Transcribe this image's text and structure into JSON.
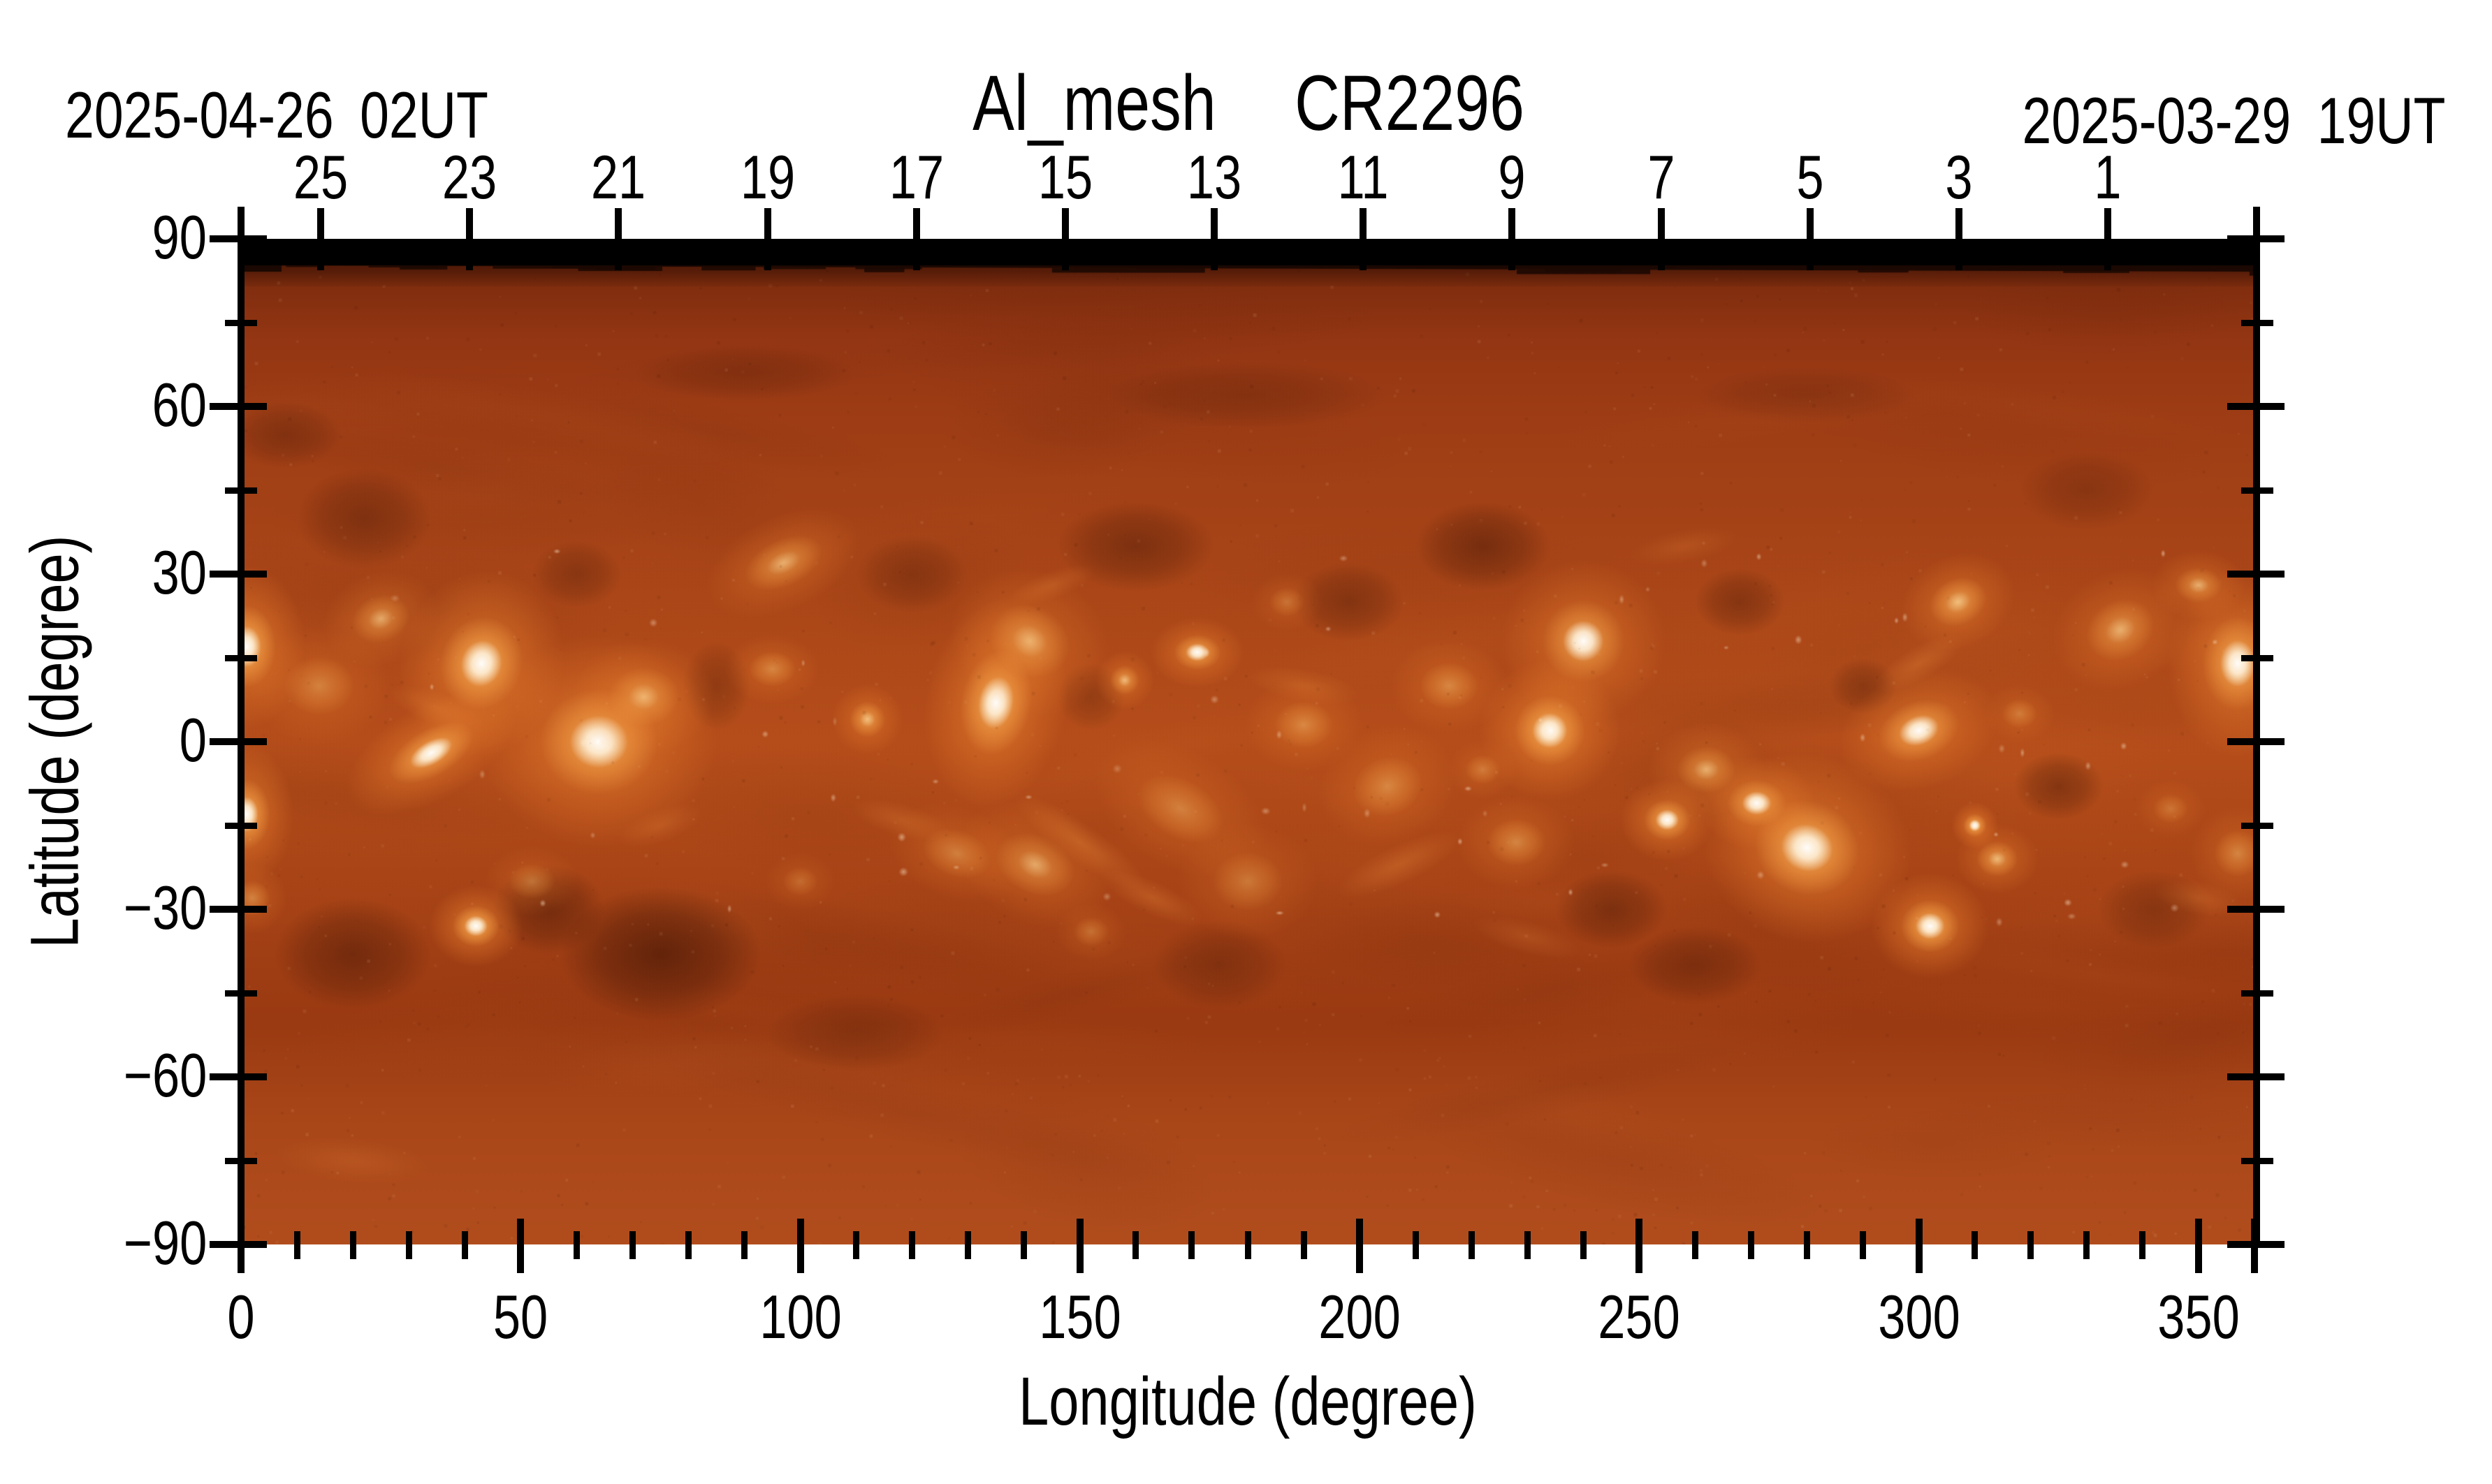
{
  "header": {
    "left_date": "2025-04-26 02UT",
    "title": "Al_mesh  CR2296",
    "right_date": "2025-03-29 19UT"
  },
  "axes": {
    "top": {
      "tick_labels": [
        "25",
        "23",
        "21",
        "19",
        "17",
        "15",
        "13",
        "11",
        "9",
        "7",
        "5",
        "3",
        "1"
      ]
    },
    "bottom": {
      "label": "Longitude (degree)",
      "tick_labels": [
        "0",
        "50",
        "100",
        "150",
        "200",
        "250",
        "300",
        "350"
      ]
    },
    "left": {
      "label": "Latitude (degree)",
      "tick_labels": [
        "90",
        "60",
        "30",
        "0",
        "−30",
        "−60",
        "−90"
      ]
    }
  },
  "colors": {
    "background": "#ffffff",
    "axis": "#000000",
    "polar_band": "#000000",
    "map_base_mid": "#ac4718",
    "map_dark": "#7c2c0e",
    "map_bright_halo": "#f09a3c",
    "map_core": "#ffffff",
    "south_pole": "#b14d1d"
  },
  "chart_data": {
    "type": "heatmap",
    "title": "Al_mesh  CR2296",
    "instrument_filter": "Al_mesh",
    "carrington_rotation": "CR2296",
    "left_edge_time": "2025-04-26 02UT",
    "right_edge_time": "2025-03-29 19UT",
    "xlabel": "Longitude (degree)",
    "ylabel": "Latitude (degree)",
    "xlim": [
      0,
      360
    ],
    "ylim": [
      -90,
      90
    ],
    "x_major_ticks": [
      0,
      50,
      100,
      150,
      200,
      250,
      300,
      350
    ],
    "x_minor_step": 10,
    "y_major_ticks": [
      90,
      60,
      30,
      0,
      -30,
      -60,
      -90
    ],
    "y_minor_step": 15,
    "top_axis_day_ticks": [
      25,
      23,
      21,
      19,
      17,
      15,
      13,
      11,
      9,
      7,
      5,
      3,
      1
    ],
    "grid": false,
    "legend": false,
    "colormap": "solar orange: dark red -> burnt orange -> white",
    "colormap_stops": [
      [
        0.0,
        "#431605"
      ],
      [
        0.035,
        "#7c2c0e"
      ],
      [
        0.1,
        "#943613"
      ],
      [
        0.18,
        "#9e3d15"
      ],
      [
        0.3,
        "#a64317"
      ],
      [
        0.5,
        "#ac4718"
      ],
      [
        0.68,
        "#a34015"
      ],
      [
        0.78,
        "#9a3a12"
      ],
      [
        0.88,
        "#aa4719"
      ],
      [
        1.0,
        "#b14d1d"
      ]
    ],
    "missing_data_band": {
      "lat_min": 84.3,
      "lat_max": 90,
      "color": "#000000"
    },
    "active_regions_format": [
      "lon_deg",
      "lat_deg",
      "rx_deg",
      "ry_deg",
      "rot_deg",
      "intensity"
    ],
    "active_regions": [
      [
        1,
        17,
        5,
        7,
        0,
        1.0
      ],
      [
        1,
        -13,
        4,
        6,
        0,
        0.95
      ],
      [
        2,
        -28,
        3,
        3,
        0,
        0.5
      ],
      [
        14,
        10,
        6,
        5,
        0,
        0.45
      ],
      [
        25,
        22,
        5,
        4,
        -20,
        0.55
      ],
      [
        43,
        14,
        7,
        8,
        15,
        1.0
      ],
      [
        34,
        -2,
        8,
        4,
        -30,
        0.9
      ],
      [
        64,
        0,
        10,
        9,
        0,
        0.95
      ],
      [
        72,
        8,
        6,
        5,
        0,
        0.6
      ],
      [
        42,
        -33,
        4,
        3.5,
        0,
        1.0
      ],
      [
        52,
        -25,
        4,
        3,
        0,
        0.4
      ],
      [
        97,
        32,
        7,
        4,
        -25,
        0.6
      ],
      [
        95,
        13,
        4,
        3,
        0,
        0.5
      ],
      [
        112,
        4,
        3,
        3,
        0,
        0.75
      ],
      [
        135,
        7,
        6,
        9,
        10,
        1.0
      ],
      [
        141,
        18,
        7,
        6,
        30,
        0.6
      ],
      [
        128,
        -20,
        6,
        4,
        20,
        0.45
      ],
      [
        142,
        -22,
        7,
        5,
        25,
        0.55
      ],
      [
        158,
        11,
        2.5,
        2.5,
        0,
        0.7
      ],
      [
        171,
        16,
        4,
        3,
        0,
        0.85
      ],
      [
        168,
        -12,
        8,
        5,
        30,
        0.45
      ],
      [
        180,
        -25,
        6,
        5,
        0,
        0.4
      ],
      [
        190,
        3,
        5,
        4,
        0,
        0.5
      ],
      [
        205,
        -8,
        6,
        5,
        -20,
        0.5
      ],
      [
        216,
        10,
        5,
        4,
        0,
        0.5
      ],
      [
        234,
        2,
        6,
        6,
        0,
        1.0
      ],
      [
        240,
        18,
        7,
        7,
        -35,
        0.8
      ],
      [
        228,
        -18,
        5,
        4,
        0,
        0.5
      ],
      [
        255,
        -14,
        4,
        3.5,
        0,
        0.9
      ],
      [
        262,
        -5,
        5,
        4,
        0,
        0.6
      ],
      [
        280,
        -19,
        9,
        8,
        20,
        1.0
      ],
      [
        271,
        -11,
        5,
        4,
        0,
        0.8
      ],
      [
        300,
        2,
        7,
        5,
        -20,
        0.85
      ],
      [
        310,
        -15,
        2,
        2,
        0,
        1.0
      ],
      [
        314,
        -21,
        3.5,
        3,
        0,
        0.7
      ],
      [
        302,
        -33,
        5,
        4.5,
        0,
        1.0
      ],
      [
        307,
        25,
        5,
        4,
        -25,
        0.75
      ],
      [
        336,
        20,
        6,
        5,
        -30,
        0.6
      ],
      [
        357,
        14,
        6,
        8,
        0,
        0.95
      ],
      [
        357,
        -20,
        4,
        4,
        0,
        0.5
      ],
      [
        350,
        28,
        4,
        3,
        0,
        0.6
      ],
      [
        152,
        -34,
        3,
        2.5,
        0,
        0.35
      ],
      [
        187,
        25,
        3,
        2.5,
        0,
        0.35
      ],
      [
        100,
        -25,
        3,
        2.5,
        0,
        0.3
      ],
      [
        222,
        -5,
        3,
        2.5,
        0,
        0.4
      ],
      [
        318,
        5,
        3,
        2.5,
        0,
        0.4
      ],
      [
        345,
        -12,
        3,
        2.5,
        0,
        0.35
      ]
    ],
    "dark_regions_format": [
      "lon_deg",
      "lat_deg",
      "rx_deg",
      "ry_deg",
      "alpha"
    ],
    "dark_regions": [
      [
        20,
        -38,
        14,
        10,
        0.45
      ],
      [
        75,
        -38,
        18,
        12,
        0.6
      ],
      [
        55,
        -30,
        10,
        8,
        0.45
      ],
      [
        22,
        40,
        12,
        9,
        0.35
      ],
      [
        8,
        55,
        10,
        6,
        0.3
      ],
      [
        60,
        30,
        8,
        6,
        0.3
      ],
      [
        85,
        10,
        6,
        8,
        0.28
      ],
      [
        120,
        30,
        10,
        7,
        0.28
      ],
      [
        160,
        35,
        14,
        8,
        0.4
      ],
      [
        152,
        8,
        6,
        6,
        0.25
      ],
      [
        175,
        -40,
        12,
        8,
        0.3
      ],
      [
        198,
        25,
        10,
        7,
        0.35
      ],
      [
        222,
        35,
        12,
        8,
        0.45
      ],
      [
        245,
        -30,
        10,
        7,
        0.4
      ],
      [
        260,
        -40,
        12,
        7,
        0.35
      ],
      [
        268,
        25,
        8,
        6,
        0.35
      ],
      [
        290,
        10,
        6,
        5,
        0.3
      ],
      [
        325,
        -8,
        8,
        6,
        0.4
      ],
      [
        342,
        -30,
        10,
        7,
        0.3
      ],
      [
        330,
        45,
        12,
        7,
        0.25
      ],
      [
        180,
        62,
        25,
        6,
        0.22
      ],
      [
        90,
        66,
        20,
        5,
        0.22
      ],
      [
        280,
        62,
        20,
        5,
        0.18
      ],
      [
        110,
        -52,
        16,
        7,
        0.25
      ]
    ],
    "bright_wisps_format": [
      "lon_deg",
      "lat_deg",
      "rx_deg",
      "ry_deg",
      "rot_deg",
      "alpha"
    ],
    "bright_wisps": [
      [
        150,
        -18,
        14,
        3.5,
        35,
        0.35
      ],
      [
        163,
        -28,
        10,
        3,
        25,
        0.3
      ],
      [
        207,
        -22,
        12,
        3.5,
        -25,
        0.3
      ],
      [
        118,
        -14,
        9,
        3,
        15,
        0.25
      ],
      [
        258,
        35,
        10,
        3,
        -10,
        0.2
      ],
      [
        35,
        6,
        9,
        3,
        20,
        0.3
      ],
      [
        300,
        14,
        9,
        3,
        -30,
        0.3
      ],
      [
        350,
        -28,
        8,
        3,
        10,
        0.25
      ],
      [
        75,
        -15,
        8,
        3,
        -20,
        0.25
      ],
      [
        190,
        10,
        10,
        3,
        10,
        0.25
      ],
      [
        230,
        -35,
        10,
        3,
        15,
        0.2
      ],
      [
        145,
        28,
        8,
        2.5,
        -20,
        0.25
      ],
      [
        20,
        -75,
        14,
        4,
        5,
        0.18
      ]
    ]
  }
}
